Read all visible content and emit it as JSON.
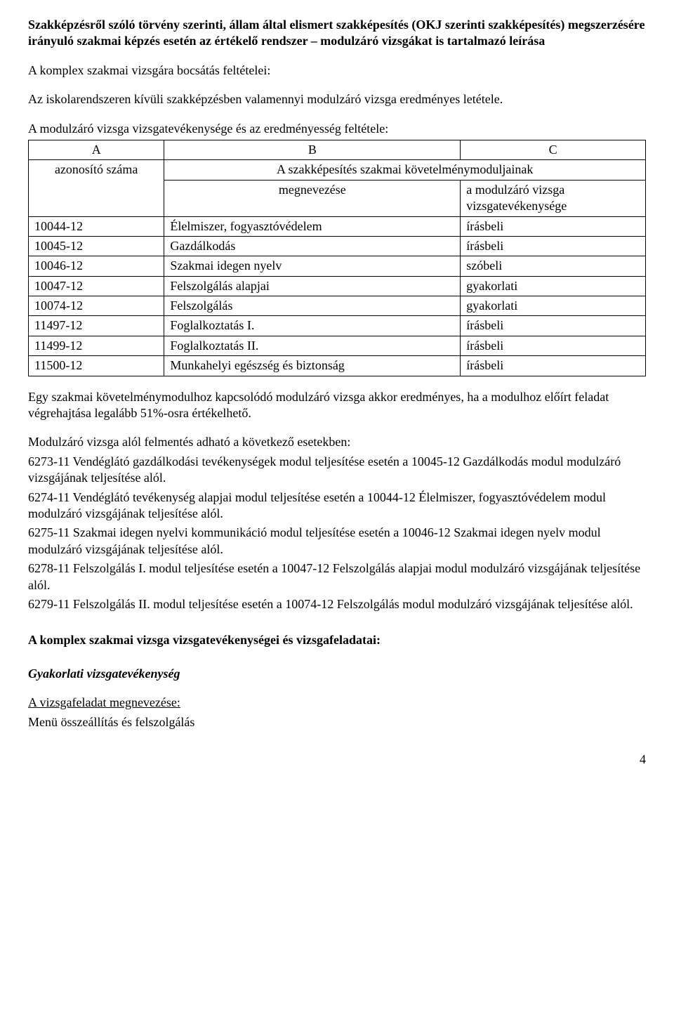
{
  "title_lines": [
    "Szakképzésről szóló törvény szerinti, állam által elismert szakképesítés (OKJ szerinti szakképesítés) megszerzésére irányuló szakmai képzés esetén az értékelő rendszer – modulzáró vizsgákat is tartalmazó leírása"
  ],
  "p1": "A komplex szakmai vizsgára bocsátás feltételei:",
  "p2": "Az iskolarendszeren kívüli szakképzésben valamennyi modulzáró vizsga eredményes letétele.",
  "p3": "A modulzáró vizsga vizsgatevékenysége és az eredményesség feltétele:",
  "table": {
    "cols": [
      "A",
      "B",
      "C"
    ],
    "span_header": "A szakképesítés szakmai követelménymoduljainak",
    "sub_a": "azonosító száma",
    "sub_b": "megnevezése",
    "sub_c": "a modulzáró vizsga vizsgatevékenysége",
    "rows": [
      [
        "10044-12",
        "Élelmiszer, fogyasztóvédelem",
        "írásbeli"
      ],
      [
        "10045-12",
        "Gazdálkodás",
        "írásbeli"
      ],
      [
        "10046-12",
        "Szakmai idegen nyelv",
        "szóbeli"
      ],
      [
        "10047-12",
        "Felszolgálás alapjai",
        "gyakorlati"
      ],
      [
        "10074-12",
        "Felszolgálás",
        "gyakorlati"
      ],
      [
        "11497-12",
        "Foglalkoztatás I.",
        "írásbeli"
      ],
      [
        "11499-12",
        "Foglalkoztatás II.",
        "írásbeli"
      ],
      [
        "11500-12",
        "Munkahelyi egészség és biztonság",
        "írásbeli"
      ]
    ]
  },
  "p4": "Egy szakmai követelménymodulhoz kapcsolódó modulzáró vizsga akkor eredményes, ha a modulhoz előírt feladat végrehajtása legalább 51%-osra értékelhető.",
  "p5a": "Modulzáró vizsga alól felmentés adható a következő esetekben:",
  "p5b": "6273-11 Vendéglátó gazdálkodási tevékenységek modul teljesítése esetén a 10045-12 Gazdálkodás modul modulzáró vizsgájának teljesítése alól.",
  "p5c": "6274-11 Vendéglátó tevékenység alapjai modul teljesítése esetén a 10044-12 Élelmiszer, fogyasztóvédelem modul modulzáró vizsgájának teljesítése alól.",
  "p5d": "6275-11 Szakmai idegen nyelvi kommunikáció modul teljesítése esetén a 10046-12 Szakmai idegen nyelv modul modulzáró vizsgájának teljesítése alól.",
  "p5e": "6278-11 Felszolgálás I. modul teljesítése esetén a 10047-12 Felszolgálás alapjai modul modulzáró vizsgájának teljesítése alól.",
  "p5f": "6279-11 Felszolgálás II. modul teljesítése esetén a 10074-12 Felszolgálás modul modulzáró vizsgájának teljesítése alól.",
  "h2": "A komplex szakmai vizsga vizsgatevékenységei és vizsgafeladatai:",
  "h3": "Gyakorlati vizsgatevékenység",
  "h4": "A vizsgafeladat megnevezése:",
  "p6": "Menü összeállítás és felszolgálás",
  "page_number": "4",
  "layout": {
    "col_widths": [
      "22%",
      "48%",
      "30%"
    ]
  }
}
